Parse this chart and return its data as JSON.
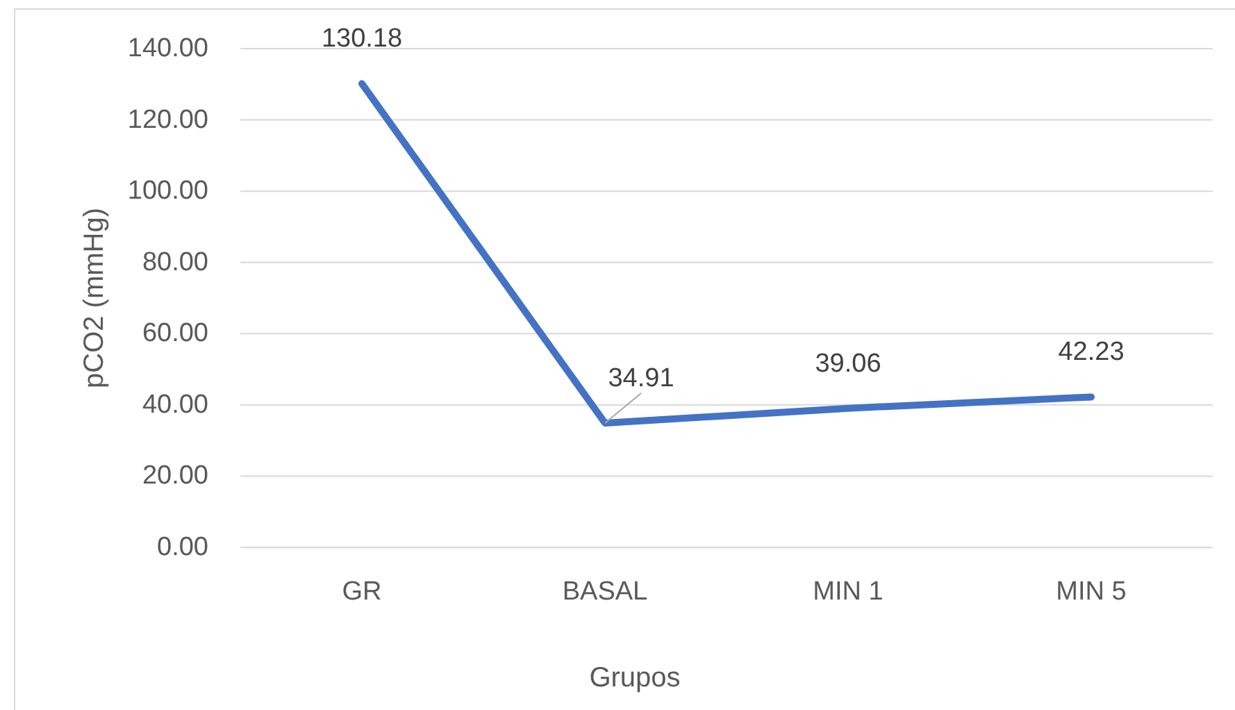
{
  "chart_data": {
    "type": "line",
    "categories": [
      "GR",
      "BASAL",
      "MIN 1",
      "MIN 5"
    ],
    "series": [
      {
        "color": "#4472c4",
        "values": [
          130.18,
          34.91,
          39.06,
          42.23
        ]
      }
    ],
    "xlabel": "Grupos",
    "ylabel": "pCO2 (mmHg)",
    "ylim": [
      0,
      140
    ],
    "yticks": [
      {
        "value": 0,
        "label": "0.00"
      },
      {
        "value": 20,
        "label": "20.00"
      },
      {
        "value": 40,
        "label": "40.00"
      },
      {
        "value": 60,
        "label": "60.00"
      },
      {
        "value": 80,
        "label": "80.00"
      },
      {
        "value": 100,
        "label": "100.00"
      },
      {
        "value": 120,
        "label": "120.00"
      },
      {
        "value": 140,
        "label": "140.00"
      }
    ],
    "grid": "y",
    "data_labels": true,
    "line_style": "solid"
  }
}
